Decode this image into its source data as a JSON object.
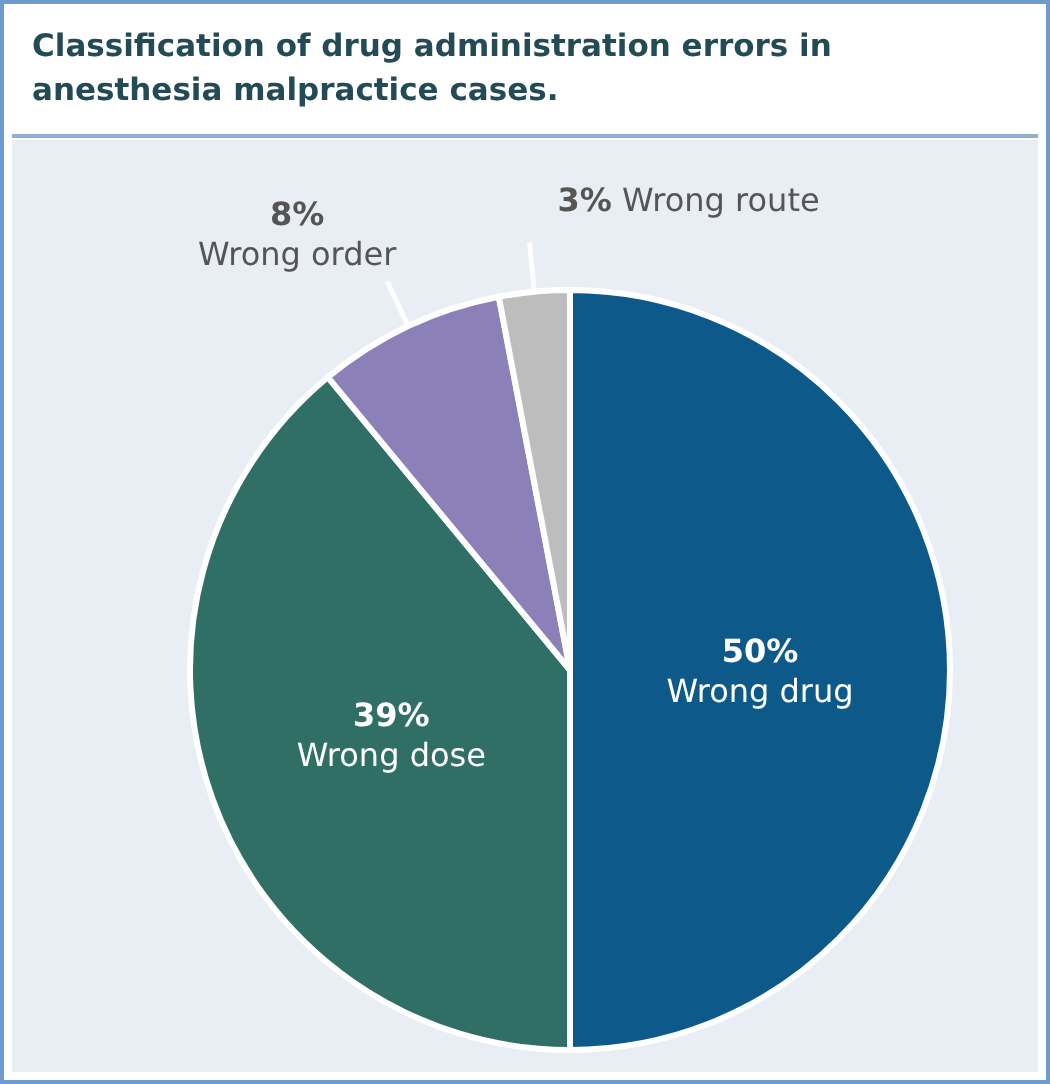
{
  "chart_data": {
    "type": "pie",
    "title": "Classification of drug administration errors in anesthesia malpractice cases.",
    "categories": [
      "Wrong drug",
      "Wrong dose",
      "Wrong order",
      "Wrong route"
    ],
    "values": [
      50,
      39,
      8,
      3
    ],
    "value_labels": [
      "50%",
      "39%",
      "8%",
      "3%"
    ],
    "colors": [
      "#0d5a8a",
      "#2f6f66",
      "#8b80b8",
      "#bdbdbd"
    ]
  }
}
